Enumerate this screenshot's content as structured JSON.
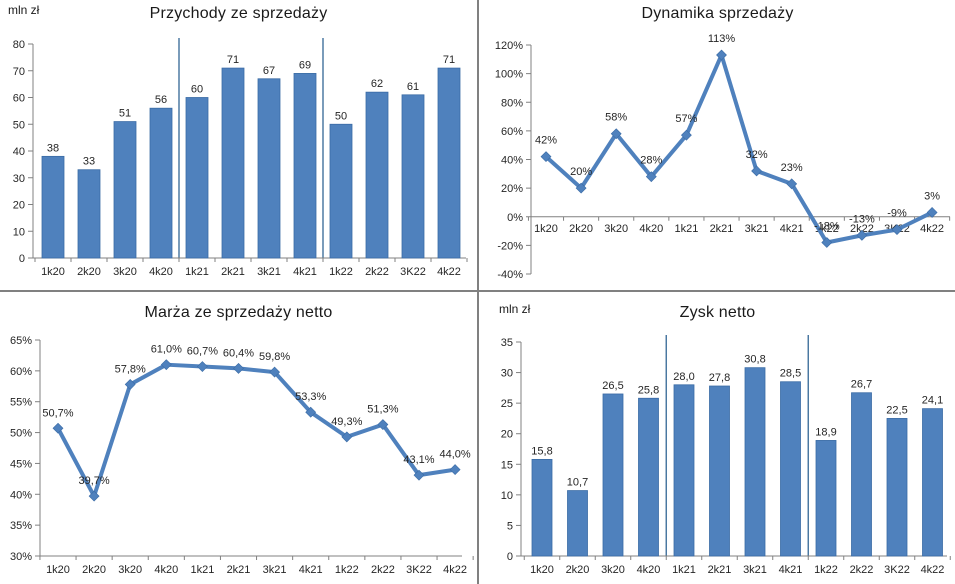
{
  "colors": {
    "series": "#4F81BD",
    "series_border": "#3A6BA5",
    "separator": "#41719C",
    "divider": "#808080",
    "axis": "#808080",
    "text": "#262626",
    "background": "#FFFFFF"
  },
  "chart_data": [
    {
      "type": "bar",
      "title": "Przychody ze sprzedaży",
      "unit_label": "mln zł",
      "categories": [
        "1k20",
        "2k20",
        "3k20",
        "4k20",
        "1k21",
        "2k21",
        "3k21",
        "4k21",
        "1k22",
        "2k22",
        "3K22",
        "4k22"
      ],
      "values": [
        38,
        33,
        51,
        56,
        60,
        71,
        67,
        69,
        50,
        62,
        61,
        71
      ],
      "labels": [
        "38",
        "33",
        "51",
        "56",
        "60",
        "71",
        "67",
        "69",
        "50",
        "62",
        "61",
        "71"
      ],
      "ylim": [
        0,
        80
      ],
      "ytick_step": 10,
      "ytick_labels": [
        "80",
        "70",
        "60",
        "50",
        "40",
        "30",
        "20",
        "10",
        "0"
      ],
      "separators_after_index": [
        3,
        7
      ],
      "grid": false,
      "legend": "none"
    },
    {
      "type": "line",
      "title": "Dynamika sprzedaży",
      "unit_label": "",
      "categories": [
        "1k20",
        "2k20",
        "3k20",
        "4k20",
        "1k21",
        "2k21",
        "3k21",
        "4k21",
        "1k22",
        "2k22",
        "3K22",
        "4k22"
      ],
      "values": [
        42,
        20,
        58,
        28,
        57,
        113,
        32,
        23,
        -18,
        -13,
        -9,
        3
      ],
      "labels": [
        "42%",
        "20%",
        "58%",
        "28%",
        "57%",
        "113%",
        "32%",
        "23%",
        "-18%",
        "-13%",
        "-9%",
        "3%"
      ],
      "ylim": [
        -40,
        120
      ],
      "ytick_step": 20,
      "ytick_labels": [
        "120%",
        "100%",
        "80%",
        "60%",
        "40%",
        "20%",
        "0%",
        "-20%",
        "-40%"
      ],
      "separators_after_index": [],
      "grid": false,
      "legend": "none"
    },
    {
      "type": "line",
      "title": "Marża ze sprzedaży netto",
      "unit_label": "",
      "categories": [
        "1k20",
        "2k20",
        "3k20",
        "4k20",
        "1k21",
        "2k21",
        "3k21",
        "4k21",
        "1k22",
        "2k22",
        "3K22",
        "4k22"
      ],
      "values": [
        50.7,
        39.7,
        57.8,
        61.0,
        60.7,
        60.4,
        59.8,
        53.3,
        49.3,
        51.3,
        43.1,
        44.0
      ],
      "labels": [
        "50,7%",
        "39,7%",
        "57,8%",
        "61,0%",
        "60,7%",
        "60,4%",
        "59,8%",
        "53,3%",
        "49,3%",
        "51,3%",
        "43,1%",
        "44,0%"
      ],
      "ylim": [
        30,
        65
      ],
      "ytick_step": 5,
      "ytick_labels": [
        "65%",
        "60%",
        "55%",
        "50%",
        "45%",
        "40%",
        "35%",
        "30%"
      ],
      "separators_after_index": [],
      "grid": false,
      "legend": "none"
    },
    {
      "type": "bar",
      "title": "Zysk netto",
      "unit_label": "mln zł",
      "categories": [
        "1k20",
        "2k20",
        "3k20",
        "4k20",
        "1k21",
        "2k21",
        "3k21",
        "4k21",
        "1k22",
        "2k22",
        "3K22",
        "4k22"
      ],
      "values": [
        15.8,
        10.7,
        26.5,
        25.8,
        28.0,
        27.8,
        30.8,
        28.5,
        18.9,
        26.7,
        22.5,
        24.1
      ],
      "labels": [
        "15,8",
        "10,7",
        "26,5",
        "25,8",
        "28,0",
        "27,8",
        "30,8",
        "28,5",
        "18,9",
        "26,7",
        "22,5",
        "24,1"
      ],
      "ylim": [
        0,
        35
      ],
      "ytick_step": 5,
      "ytick_labels": [
        "35",
        "30",
        "25",
        "20",
        "15",
        "10",
        "5",
        "0"
      ],
      "separators_after_index": [
        3,
        7
      ],
      "grid": false,
      "legend": "none"
    }
  ]
}
